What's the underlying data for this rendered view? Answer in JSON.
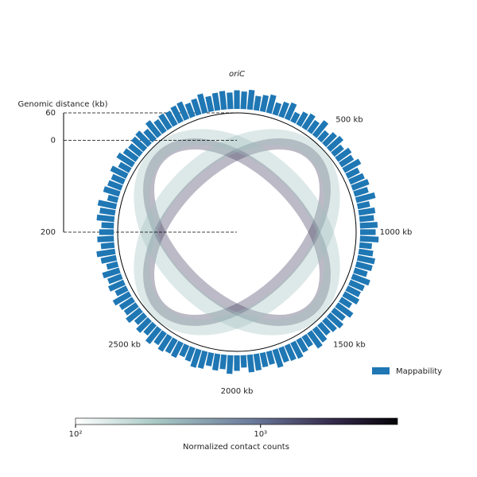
{
  "chart_data": {
    "type": "circular-contact-map",
    "title": "oriC",
    "radial_axis": {
      "label": "Genomic distance (kb)",
      "ylim": [
        200,
        -60
      ],
      "yticks": [
        {
          "value": -60,
          "label": "60"
        },
        0,
        200
      ]
    },
    "genome_ticks": {
      "xlim": [
        0,
        4000
      ],
      "ticks": [
        {
          "value": 500,
          "label": "500 kb"
        },
        {
          "value": 1000,
          "label": "1000 kb"
        },
        {
          "value": 1500,
          "label": "1500 kb"
        },
        {
          "value": 2000,
          "label": "2000 kb"
        },
        {
          "value": 2500,
          "label": "2500 kb"
        }
      ]
    },
    "mappability": {
      "name": "Mappability",
      "color": "#1f77b4",
      "ylim": [
        0,
        1
      ],
      "values": [
        0.9,
        0.85,
        0.95,
        0.7,
        0.8,
        0.9,
        0.6,
        0.75,
        0.85,
        0.5,
        0.7,
        0.8,
        0.65,
        0.9,
        0.55,
        0.75,
        0.85,
        0.6,
        0.8,
        0.7,
        0.9,
        0.65,
        0.75,
        0.85,
        0.7,
        0.95,
        0.6,
        0.8,
        0.7,
        0.85,
        0.75,
        0.9,
        0.6,
        0.7,
        0.85,
        0.8,
        0.65,
        0.9,
        0.75,
        0.7,
        0.8,
        0.6,
        0.9,
        0.7,
        0.85,
        0.75,
        0.65,
        0.8,
        0.9,
        0.6,
        0.7,
        0.85,
        0.8,
        0.75,
        0.9,
        0.65,
        0.7,
        0.8,
        0.85,
        0.6,
        0.75,
        0.9,
        0.7,
        0.8,
        0.65,
        0.85,
        0.9,
        0.7,
        0.6,
        0.8,
        0.75,
        0.85,
        0.7,
        0.9,
        0.65,
        0.8,
        0.6,
        0.85,
        0.7,
        0.75,
        0.9,
        0.6,
        0.8,
        0.7,
        0.85,
        0.55,
        0.75,
        0.9,
        0.65,
        0.8,
        0.7,
        0.6,
        0.85,
        0.75,
        0.9,
        0.5,
        0.8,
        0.7,
        0.65,
        0.85,
        0.6,
        0.9,
        0.75,
        0.7,
        0.8,
        0.85,
        0.65,
        0.9,
        0.7,
        0.8,
        0.75,
        0.85,
        0.9,
        0.7,
        0.8,
        0.95,
        0.75,
        0.85,
        0.9,
        0.8
      ]
    },
    "colorbar": {
      "label": "Normalized contact counts",
      "log": true,
      "xlim": [
        100,
        5500
      ],
      "xticks": [
        {
          "value": 100,
          "label": "10²"
        },
        {
          "value": 1000,
          "label": "10³"
        }
      ]
    },
    "legend": "lower right"
  }
}
